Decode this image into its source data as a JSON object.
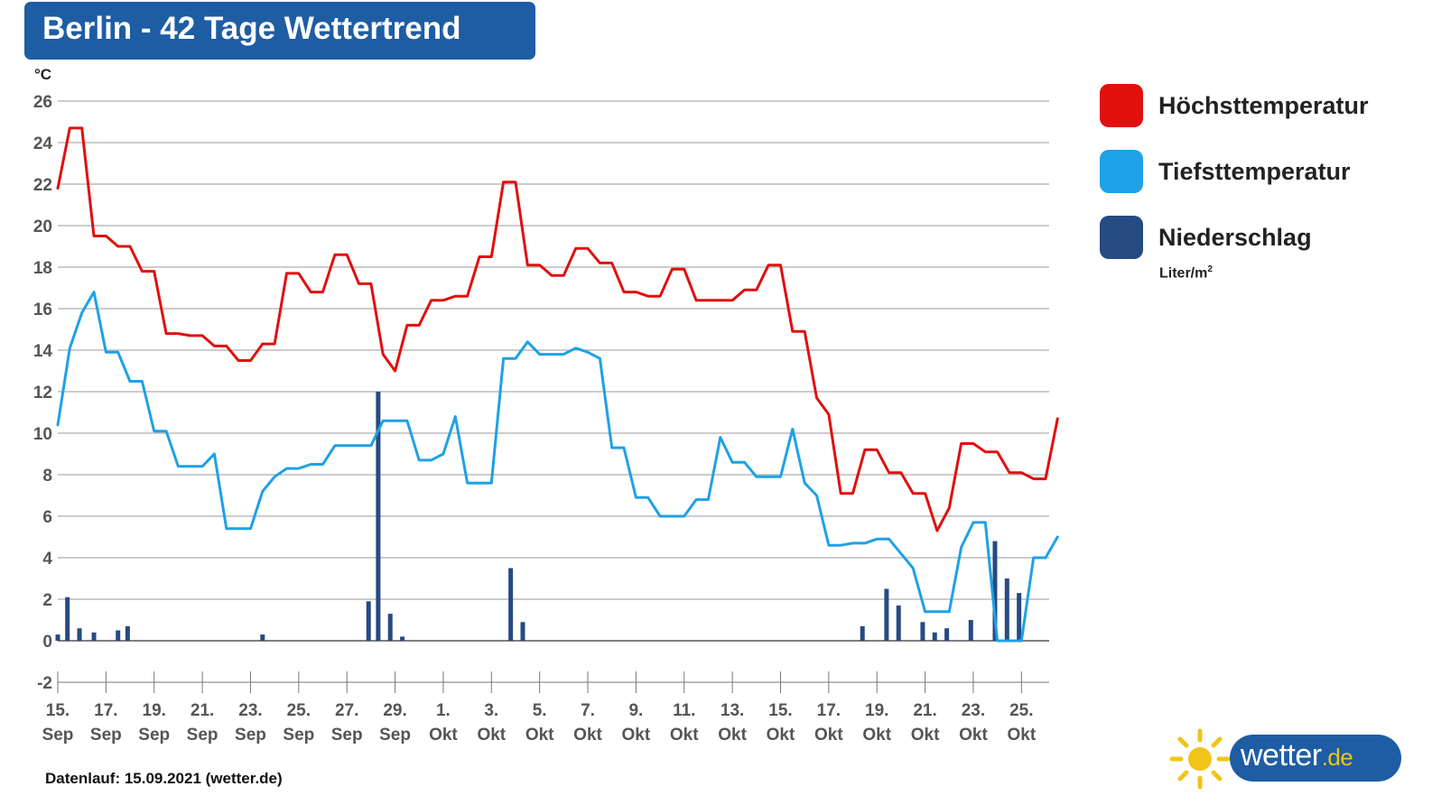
{
  "header": {
    "title": "Berlin - 42 Tage Wettertrend"
  },
  "legend": {
    "items": [
      {
        "label": "Höchsttemperatur",
        "color": "#e0100f"
      },
      {
        "label": "Tiefsttemperatur",
        "color": "#1ea1e6"
      },
      {
        "label": "Niederschlag",
        "color": "#264a82"
      }
    ],
    "precip_unit": "Liter/m",
    "precip_unit_sup": "2"
  },
  "footer": {
    "text": "Datenlauf: 15.09.2021 (wetter.de)"
  },
  "logo": {
    "name": "wetter",
    "tld": ".de"
  },
  "chart_data": {
    "type": "line",
    "title": "Berlin - 42 Tage Wettertrend",
    "ylabel": "°C",
    "ylim": [
      -2,
      26
    ],
    "yticks": [
      -2,
      0,
      2,
      4,
      6,
      8,
      10,
      12,
      14,
      16,
      18,
      20,
      22,
      24,
      26
    ],
    "grid": true,
    "legend_position": "right",
    "x_range": [
      0,
      41
    ],
    "x_ticks": [
      {
        "x": 0,
        "day": "15.",
        "month": "Sep"
      },
      {
        "x": 2,
        "day": "17.",
        "month": "Sep"
      },
      {
        "x": 4,
        "day": "19.",
        "month": "Sep"
      },
      {
        "x": 6,
        "day": "21.",
        "month": "Sep"
      },
      {
        "x": 8,
        "day": "23.",
        "month": "Sep"
      },
      {
        "x": 10,
        "day": "25.",
        "month": "Sep"
      },
      {
        "x": 12,
        "day": "27.",
        "month": "Sep"
      },
      {
        "x": 14,
        "day": "29.",
        "month": "Sep"
      },
      {
        "x": 16,
        "day": "1.",
        "month": "Okt"
      },
      {
        "x": 18,
        "day": "3.",
        "month": "Okt"
      },
      {
        "x": 20,
        "day": "5.",
        "month": "Okt"
      },
      {
        "x": 22,
        "day": "7.",
        "month": "Okt"
      },
      {
        "x": 24,
        "day": "9.",
        "month": "Okt"
      },
      {
        "x": 26,
        "day": "11.",
        "month": "Okt"
      },
      {
        "x": 28,
        "day": "13.",
        "month": "Okt"
      },
      {
        "x": 30,
        "day": "15.",
        "month": "Okt"
      },
      {
        "x": 32,
        "day": "17.",
        "month": "Okt"
      },
      {
        "x": 34,
        "day": "19.",
        "month": "Okt"
      },
      {
        "x": 36,
        "day": "21.",
        "month": "Okt"
      },
      {
        "x": 38,
        "day": "23.",
        "month": "Okt"
      },
      {
        "x": 40,
        "day": "25.",
        "month": "Okt"
      }
    ],
    "series": [
      {
        "name": "Höchsttemperatur",
        "kind": "line",
        "color": "#e0100f",
        "points": [
          [
            0,
            21.8
          ],
          [
            0.5,
            24.7
          ],
          [
            1,
            24.7
          ],
          [
            1.5,
            19.5
          ],
          [
            2,
            19.5
          ],
          [
            2.5,
            19.0
          ],
          [
            3,
            19.0
          ],
          [
            3.5,
            17.8
          ],
          [
            4,
            17.8
          ],
          [
            4.5,
            14.8
          ],
          [
            5,
            14.8
          ],
          [
            5.5,
            14.7
          ],
          [
            6,
            14.7
          ],
          [
            6.5,
            14.2
          ],
          [
            7,
            14.2
          ],
          [
            7.5,
            13.5
          ],
          [
            8,
            13.5
          ],
          [
            8.5,
            14.3
          ],
          [
            9,
            14.3
          ],
          [
            9.5,
            17.7
          ],
          [
            10,
            17.7
          ],
          [
            10.5,
            16.8
          ],
          [
            11,
            16.8
          ],
          [
            11.5,
            18.6
          ],
          [
            12,
            18.6
          ],
          [
            12.5,
            17.2
          ],
          [
            13,
            17.2
          ],
          [
            13.5,
            13.8
          ],
          [
            14,
            13.0
          ],
          [
            14.5,
            15.2
          ],
          [
            15,
            15.2
          ],
          [
            15.5,
            16.4
          ],
          [
            16,
            16.4
          ],
          [
            16.5,
            16.6
          ],
          [
            17,
            16.6
          ],
          [
            17.5,
            18.5
          ],
          [
            18,
            18.5
          ],
          [
            18.5,
            22.1
          ],
          [
            19,
            22.1
          ],
          [
            19.5,
            18.1
          ],
          [
            20,
            18.1
          ],
          [
            20.5,
            17.6
          ],
          [
            21,
            17.6
          ],
          [
            21.5,
            18.9
          ],
          [
            22,
            18.9
          ],
          [
            22.5,
            18.2
          ],
          [
            23,
            18.2
          ],
          [
            23.5,
            16.8
          ],
          [
            24,
            16.8
          ],
          [
            24.5,
            16.6
          ],
          [
            25,
            16.6
          ],
          [
            25.5,
            17.9
          ],
          [
            26,
            17.9
          ],
          [
            26.5,
            16.4
          ],
          [
            27,
            16.4
          ],
          [
            27.5,
            16.4
          ],
          [
            28,
            16.4
          ],
          [
            28.5,
            16.9
          ],
          [
            29,
            16.9
          ],
          [
            29.5,
            18.1
          ],
          [
            30,
            18.1
          ],
          [
            30.5,
            14.9
          ],
          [
            31,
            14.9
          ],
          [
            31.5,
            11.7
          ],
          [
            32,
            10.9
          ],
          [
            32.5,
            7.1
          ],
          [
            33,
            7.1
          ],
          [
            33.5,
            9.2
          ],
          [
            34,
            9.2
          ],
          [
            34.5,
            8.1
          ],
          [
            35,
            8.1
          ],
          [
            35.5,
            7.1
          ],
          [
            36,
            7.1
          ],
          [
            36.5,
            5.3
          ],
          [
            37,
            6.4
          ],
          [
            37.5,
            9.5
          ],
          [
            38,
            9.5
          ],
          [
            38.5,
            9.1
          ],
          [
            39,
            9.1
          ],
          [
            39.5,
            8.1
          ],
          [
            40,
            8.1
          ],
          [
            40.5,
            7.8
          ],
          [
            41,
            7.8
          ],
          [
            41.5,
            10.7
          ]
        ]
      },
      {
        "name": "Tiefsttemperatur",
        "kind": "line",
        "color": "#1ea1e6",
        "points": [
          [
            0,
            10.4
          ],
          [
            0.5,
            14.1
          ],
          [
            1,
            15.8
          ],
          [
            1.5,
            16.8
          ],
          [
            2,
            13.9
          ],
          [
            2.5,
            13.9
          ],
          [
            3,
            12.5
          ],
          [
            3.5,
            12.5
          ],
          [
            4,
            10.1
          ],
          [
            4.5,
            10.1
          ],
          [
            5,
            8.4
          ],
          [
            5.5,
            8.4
          ],
          [
            6,
            8.4
          ],
          [
            6.5,
            9.0
          ],
          [
            7,
            5.4
          ],
          [
            7.5,
            5.4
          ],
          [
            8,
            5.4
          ],
          [
            8.5,
            7.2
          ],
          [
            9,
            7.9
          ],
          [
            9.5,
            8.3
          ],
          [
            10,
            8.3
          ],
          [
            10.5,
            8.5
          ],
          [
            11,
            8.5
          ],
          [
            11.5,
            9.4
          ],
          [
            12,
            9.4
          ],
          [
            12.5,
            9.4
          ],
          [
            13,
            9.4
          ],
          [
            13.5,
            10.6
          ],
          [
            14,
            10.6
          ],
          [
            14.5,
            10.6
          ],
          [
            15,
            8.7
          ],
          [
            15.5,
            8.7
          ],
          [
            16,
            9.0
          ],
          [
            16.5,
            10.8
          ],
          [
            17,
            7.6
          ],
          [
            17.5,
            7.6
          ],
          [
            18,
            7.6
          ],
          [
            18.5,
            13.6
          ],
          [
            19,
            13.6
          ],
          [
            19.5,
            14.4
          ],
          [
            20,
            13.8
          ],
          [
            20.5,
            13.8
          ],
          [
            21,
            13.8
          ],
          [
            21.5,
            14.1
          ],
          [
            22,
            13.9
          ],
          [
            22.5,
            13.6
          ],
          [
            23,
            9.3
          ],
          [
            23.5,
            9.3
          ],
          [
            24,
            6.9
          ],
          [
            24.5,
            6.9
          ],
          [
            25,
            6.0
          ],
          [
            25.5,
            6.0
          ],
          [
            26,
            6.0
          ],
          [
            26.5,
            6.8
          ],
          [
            27,
            6.8
          ],
          [
            27.5,
            9.8
          ],
          [
            28,
            8.6
          ],
          [
            28.5,
            8.6
          ],
          [
            29,
            7.9
          ],
          [
            29.5,
            7.9
          ],
          [
            30,
            7.9
          ],
          [
            30.5,
            10.2
          ],
          [
            31,
            7.6
          ],
          [
            31.5,
            7.0
          ],
          [
            32,
            4.6
          ],
          [
            32.5,
            4.6
          ],
          [
            33,
            4.7
          ],
          [
            33.5,
            4.7
          ],
          [
            34,
            4.9
          ],
          [
            34.5,
            4.9
          ],
          [
            35,
            4.2
          ],
          [
            35.5,
            3.5
          ],
          [
            36,
            1.4
          ],
          [
            36.5,
            1.4
          ],
          [
            37,
            1.4
          ],
          [
            37.5,
            4.5
          ],
          [
            38,
            5.7
          ],
          [
            38.5,
            5.7
          ],
          [
            39,
            0.0
          ],
          [
            39.5,
            0.0
          ],
          [
            40,
            0.0
          ],
          [
            40.5,
            4.0
          ],
          [
            41,
            4.0
          ],
          [
            41.5,
            5.0
          ]
        ]
      },
      {
        "name": "Niederschlag",
        "kind": "bar",
        "unit": "Liter/m²",
        "color": "#264a82",
        "points": [
          [
            0,
            0.3
          ],
          [
            0.4,
            2.1
          ],
          [
            0.9,
            0.6
          ],
          [
            1.5,
            0.4
          ],
          [
            2.5,
            0.5
          ],
          [
            2.9,
            0.7
          ],
          [
            8.5,
            0.3
          ],
          [
            12.9,
            1.9
          ],
          [
            13.3,
            12.0
          ],
          [
            13.8,
            1.3
          ],
          [
            14.3,
            0.2
          ],
          [
            18.8,
            3.5
          ],
          [
            19.3,
            0.9
          ],
          [
            33.4,
            0.7
          ],
          [
            34.4,
            2.5
          ],
          [
            34.9,
            1.7
          ],
          [
            35.9,
            0.9
          ],
          [
            36.4,
            0.4
          ],
          [
            36.9,
            0.6
          ],
          [
            37.9,
            1.0
          ],
          [
            38.9,
            4.8
          ],
          [
            39.4,
            3.0
          ],
          [
            39.9,
            2.3
          ]
        ]
      }
    ]
  }
}
